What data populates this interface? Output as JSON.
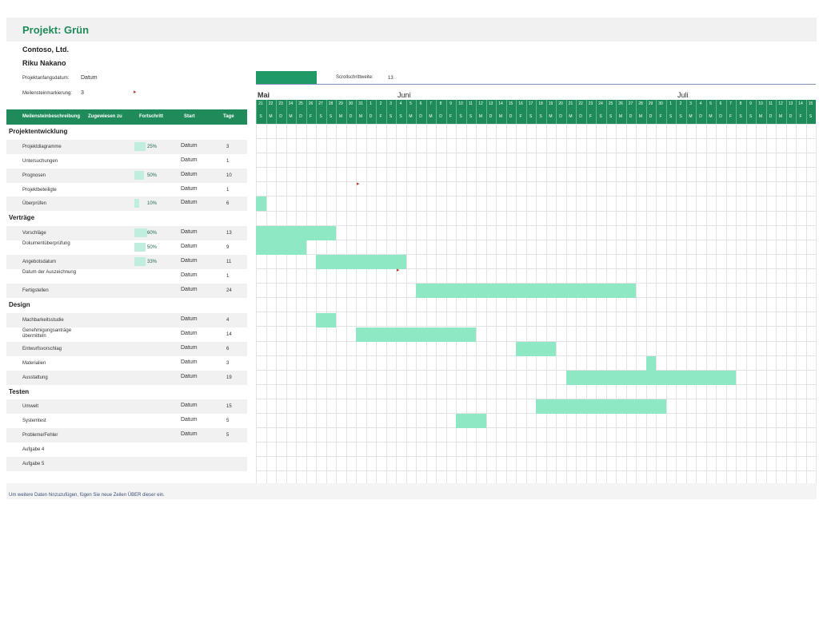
{
  "title": "Projekt: Grün",
  "company": "Contoso, Ltd.",
  "manager": "Riku Nakano",
  "start_label": "Projektanfangsdatum:",
  "start_value": "Datum",
  "marker_label": "Meilensteinmarkierung:",
  "marker_value": "3",
  "scroll_label": "Scrollschrittweite:",
  "scroll_value": "13",
  "headers": {
    "desc": "Meilensteinbeschreibung",
    "assigned": "Zugewiesen zu",
    "progress": "Fortschritt",
    "start": "Start",
    "days": "Tage"
  },
  "months": [
    "Mai",
    "Juni",
    "Juli"
  ],
  "day_numbers": [
    "21",
    "22",
    "23",
    "24",
    "25",
    "26",
    "27",
    "28",
    "29",
    "30",
    "31",
    "1",
    "2",
    "3",
    "4",
    "5",
    "6",
    "7",
    "8",
    "9",
    "10",
    "11",
    "12",
    "13",
    "14",
    "15",
    "16",
    "17",
    "18",
    "19",
    "20",
    "21",
    "22",
    "23",
    "24",
    "25",
    "26",
    "27",
    "28",
    "29",
    "30",
    "1",
    "2",
    "3",
    "4",
    "5",
    "6",
    "7",
    "8",
    "9",
    "10",
    "11",
    "12",
    "13",
    "14",
    "15"
  ],
  "weekday_letters": [
    "S",
    "M",
    "D",
    "M",
    "D",
    "F",
    "S",
    "S",
    "M",
    "D",
    "M",
    "D",
    "F",
    "S",
    "S",
    "M",
    "D",
    "M",
    "D",
    "F",
    "S",
    "S",
    "M",
    "D",
    "M",
    "D",
    "F",
    "S",
    "S",
    "M",
    "D",
    "M",
    "D",
    "F",
    "S",
    "S",
    "M",
    "D",
    "M",
    "D",
    "F",
    "S",
    "S",
    "M",
    "D",
    "M",
    "D",
    "F",
    "S",
    "S",
    "M",
    "D",
    "M",
    "D",
    "F",
    "S"
  ],
  "sections": [
    "Projektentwicklung",
    "Verträge",
    "Design",
    "Testen"
  ],
  "tasks": [
    {
      "name": "Projektdiagramme",
      "progress": "25%",
      "start": "Datum",
      "days": "3"
    },
    {
      "name": "Untersuchungen",
      "progress": "",
      "start": "Datum",
      "days": "1"
    },
    {
      "name": "Prognosen",
      "progress": "50%",
      "start": "Datum",
      "days": "10"
    },
    {
      "name": "Projektbeteiligte",
      "progress": "",
      "start": "Datum",
      "days": "1"
    },
    {
      "name": "Überprüfen",
      "progress": "10%",
      "start": "Datum",
      "days": "6"
    },
    {
      "name": "Vorschläge",
      "progress": "60%",
      "start": "Datum",
      "days": "13"
    },
    {
      "name": "Dokumentüberprüfung",
      "progress": "50%",
      "start": "Datum",
      "days": "9"
    },
    {
      "name": "Angebotsdatum",
      "progress": "33%",
      "start": "Datum",
      "days": "11"
    },
    {
      "name": "Datum der Auszeichnung",
      "progress": "",
      "start": "Datum",
      "days": "1"
    },
    {
      "name": "Fertigstellen",
      "progress": "",
      "start": "Datum",
      "days": "24"
    },
    {
      "name": "Machbarkeitsstudie",
      "progress": "",
      "start": "Datum",
      "days": "4"
    },
    {
      "name": "Genehmigungsanträge übermitteln",
      "progress": "",
      "start": "Datum",
      "days": "14"
    },
    {
      "name": "Entwurfsvorschlag",
      "progress": "",
      "start": "Datum",
      "days": "6"
    },
    {
      "name": "Materialien",
      "progress": "",
      "start": "Datum",
      "days": "3"
    },
    {
      "name": "Ausstattung",
      "progress": "",
      "start": "Datum",
      "days": "19"
    },
    {
      "name": "Umwelt",
      "progress": "",
      "start": "Datum",
      "days": "15"
    },
    {
      "name": "Systemtest",
      "progress": "",
      "start": "Datum",
      "days": "5"
    },
    {
      "name": "Probleme/Fehler",
      "progress": "",
      "start": "Datum",
      "days": "5"
    },
    {
      "name": "Aufgabe 4",
      "progress": "",
      "start": "",
      "days": ""
    },
    {
      "name": "Aufgabe 5",
      "progress": "",
      "start": "",
      "days": ""
    }
  ],
  "footer_note": "Um weitere Daten hinzuzufügen, fügen Sie neue Zeilen ÜBER dieser ein.",
  "colors": {
    "accent": "#1f8a5a",
    "bar": "#8ee8c4",
    "progress": "#bfeede",
    "flag": "#c0392b"
  }
}
